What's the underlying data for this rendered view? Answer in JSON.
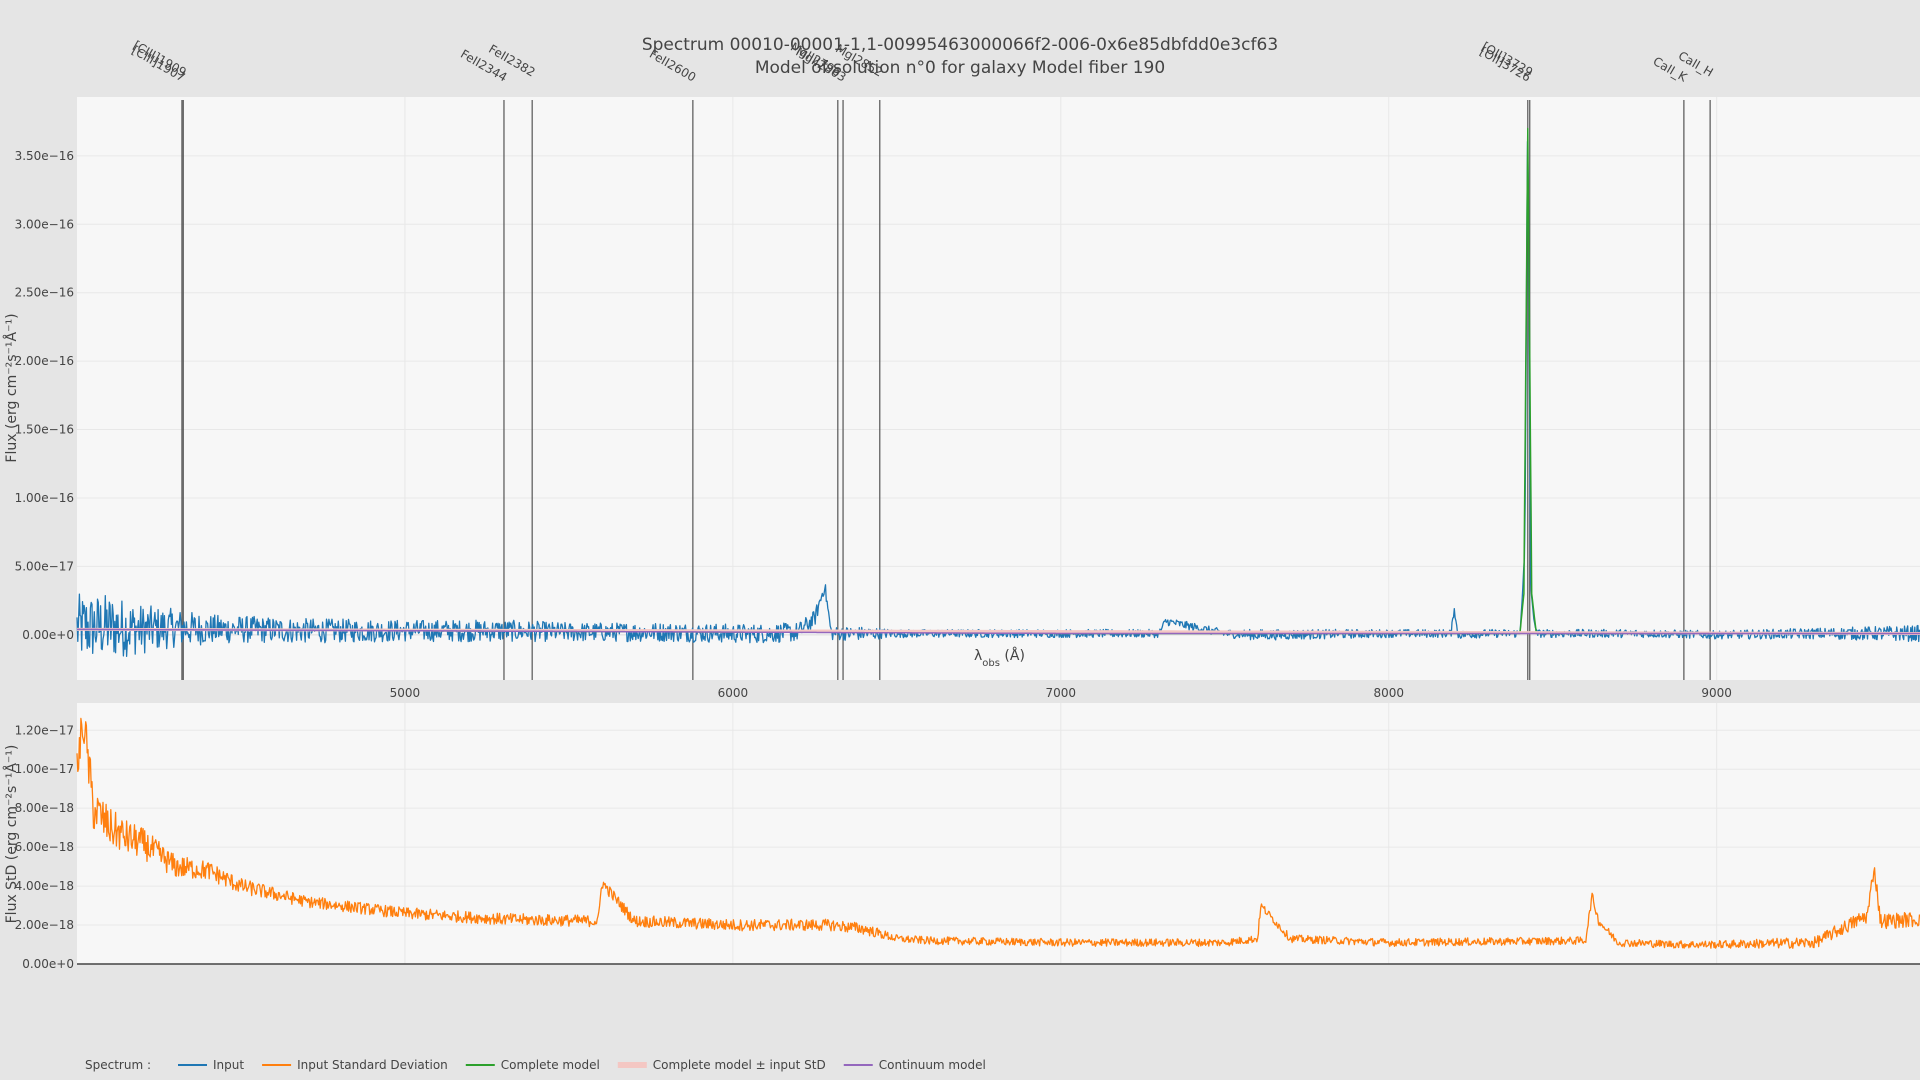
{
  "chart_data": [
    {
      "type": "line",
      "title": "Spectrum 00010-00001-1,1-00995463000066f2-006-0x6e85dbfdd0e3cf63",
      "subtitle": "Model of solution n°0 for galaxy Model fiber 190",
      "xlabel": "λ_obs (Å)",
      "xlabel_main": "λ",
      "xlabel_sub": "obs",
      "xlabel_tail": " (Å)",
      "ylabel": "Flux (erg cm⁻²s⁻¹Å⁻¹)",
      "xlim": [
        4000,
        9620
      ],
      "ylim": [
        -3.3e-17,
        3.93e-16
      ],
      "xticks": [
        5000,
        6000,
        7000,
        8000,
        9000
      ],
      "xticklabels": [
        "5000",
        "6000",
        "7000",
        "8000",
        "9000"
      ],
      "yticks": [
        0,
        5e-17,
        1e-16,
        1.5e-16,
        2e-16,
        2.5e-16,
        3e-16,
        3.5e-16
      ],
      "yticklabels": [
        "0.00e+0",
        "5.00e−17",
        "1.00e−16",
        "1.50e−16",
        "2.00e−16",
        "2.50e−16",
        "3.00e−16",
        "3.50e−16"
      ],
      "grid": true,
      "emission_lines": [
        {
          "name": "[CIII]1907",
          "x": 4320
        },
        {
          "name": "[CIII]1909",
          "x": 4324
        },
        {
          "name": "FeII2344",
          "x": 5302
        },
        {
          "name": "FeII2382",
          "x": 5388
        },
        {
          "name": "FeII2600",
          "x": 5878
        },
        {
          "name": "MgII2796",
          "x": 6320
        },
        {
          "name": "MgII2803",
          "x": 6336
        },
        {
          "name": "MgI2852",
          "x": 6448
        },
        {
          "name": "[OII]3726",
          "x": 8424
        },
        {
          "name": "[OII]3729",
          "x": 8430
        },
        {
          "name": "CaII_K",
          "x": 8900
        },
        {
          "name": "CaII_H",
          "x": 8980
        }
      ],
      "series": [
        {
          "name": "Input",
          "color": "#1f77b4",
          "x": [
            4000,
            4100,
            4200,
            4300,
            4400,
            4500,
            4700,
            5000,
            5300,
            5500,
            5800,
            6000,
            6100,
            6200,
            6250,
            6280,
            6300,
            6350,
            6400,
            6500,
            6700,
            7000,
            7300,
            7320,
            7500,
            7600,
            8000,
            8190,
            8200,
            8210,
            8300,
            8400,
            8415,
            8424,
            8433,
            8450,
            8600,
            8800,
            9000,
            9300,
            9620
          ],
          "y": [
            5e-18,
            6e-18,
            4e-18,
            5e-18,
            4e-18,
            4e-18,
            3e-18,
            3e-18,
            3e-18,
            2e-18,
            2e-18,
            1e-18,
            1e-18,
            2e-18,
            1.2e-17,
            3.6e-17,
            1e-18,
            1e-18,
            1e-18,
            1e-18,
            1e-18,
            1e-18,
            1e-18,
            1e-17,
            1e-18,
            0,
            1e-18,
            1e-18,
            2e-17,
            0,
            1e-18,
            1e-18,
            6e-17,
            3.9e-16,
            3e-17,
            1e-18,
            1e-18,
            1e-18,
            0,
            1e-18,
            1e-18
          ],
          "noise_amp": [
            2.5e-17,
            2.4e-17,
            1.8e-17,
            1.4e-17,
            1.1e-17,
            1e-17,
            9e-18,
            8e-18,
            8e-18,
            7e-18,
            7e-18,
            7e-18,
            7e-18,
            7e-18,
            6e-18,
            5e-18,
            5e-18,
            5e-18,
            5e-18,
            3e-18,
            3e-18,
            3e-18,
            3e-18,
            3e-18,
            3e-18,
            4e-18,
            3e-18,
            3e-18,
            3e-18,
            3e-18,
            3e-18,
            3e-18,
            3e-18,
            3e-18,
            3e-18,
            3e-18,
            3e-18,
            3e-18,
            3e-18,
            4e-18,
            6e-18
          ]
        },
        {
          "name": "Complete model",
          "color": "#2ca02c",
          "x": [
            4000,
            5000,
            6000,
            6250,
            6280,
            6310,
            7000,
            8000,
            8400,
            8412,
            8424,
            8436,
            8450,
            9000,
            9620
          ],
          "y": [
            4e-18,
            3e-18,
            2e-18,
            2e-18,
            3e-18,
            2e-18,
            1e-18,
            1e-18,
            1e-18,
            3e-17,
            3.7e-16,
            3e-17,
            1e-18,
            1e-18,
            1e-18
          ]
        },
        {
          "name": "Complete model ± input StD",
          "color": "#f4c7c3",
          "x": [
            4000,
            9620
          ],
          "y": [
            4e-18,
            1e-18
          ]
        },
        {
          "name": "Continuum model",
          "color": "#9467bd",
          "x": [
            4000,
            5000,
            6000,
            7000,
            8000,
            9000,
            9620
          ],
          "y": [
            4e-18,
            3e-18,
            2e-18,
            1e-18,
            1e-18,
            1e-18,
            1e-18
          ]
        }
      ]
    },
    {
      "type": "line",
      "ylabel": "Flux StD (erg cm⁻²s⁻¹Å⁻¹)",
      "xlim": [
        4000,
        9620
      ],
      "ylim": [
        0,
        1.34e-17
      ],
      "xticks": [
        5000,
        6000,
        7000,
        8000,
        9000
      ],
      "yticks": [
        0,
        2e-18,
        4e-18,
        6e-18,
        8e-18,
        1e-17,
        1.2e-17
      ],
      "yticklabels": [
        "0.00e+0",
        "2.00e−18",
        "4.00e−18",
        "6.00e−18",
        "8.00e−18",
        "1.00e−17",
        "1.20e−17"
      ],
      "grid": true,
      "series": [
        {
          "name": "Input Standard Deviation",
          "color": "#ff7f0e",
          "x": [
            4000,
            4020,
            4050,
            4100,
            4150,
            4200,
            4300,
            4400,
            4500,
            4700,
            5000,
            5300,
            5590,
            5600,
            5700,
            6000,
            6300,
            6400,
            6500,
            6600,
            7000,
            7500,
            7600,
            7610,
            7700,
            8000,
            8600,
            8620,
            8640,
            8700,
            8900,
            9000,
            9300,
            9460,
            9480,
            9500,
            9620
          ],
          "y": [
            1e-17,
            1.25e-17,
            8e-18,
            7e-18,
            6.5e-18,
            6.2e-18,
            5e-18,
            4.8e-18,
            4e-18,
            3.2e-18,
            2.6e-18,
            2.3e-18,
            2.2e-18,
            4.2e-18,
            2.2e-18,
            2e-18,
            2e-18,
            1.8e-18,
            1.3e-18,
            1.2e-18,
            1.1e-18,
            1.1e-18,
            1.3e-18,
            3e-18,
            1.3e-18,
            1.1e-18,
            1.2e-18,
            3.5e-18,
            2.2e-18,
            1.1e-18,
            1e-18,
            1e-18,
            1.1e-18,
            2.5e-18,
            5e-18,
            2.2e-18,
            2.3e-18
          ],
          "noise_amp": [
            1.2e-18,
            1.2e-18,
            1.2e-18,
            1e-18,
            9e-19,
            8e-19,
            6e-19,
            5e-19,
            4e-19,
            3e-19,
            3e-19,
            3e-19,
            3e-19,
            3e-19,
            3e-19,
            3e-19,
            3e-19,
            3e-19,
            2e-19,
            2e-19,
            2e-19,
            2e-19,
            2e-19,
            2e-19,
            2e-19,
            2e-19,
            2e-19,
            2e-19,
            2e-19,
            2e-19,
            2e-19,
            2e-19,
            3e-19,
            4e-19,
            4e-19,
            4e-19,
            4e-19
          ]
        }
      ]
    }
  ],
  "legend": {
    "title": "Spectrum :",
    "placement": "bottom-left",
    "items": [
      {
        "label": "Input",
        "color": "#1f77b4"
      },
      {
        "label": "Input Standard Deviation",
        "color": "#ff7f0e"
      },
      {
        "label": "Complete model",
        "color": "#2ca02c"
      },
      {
        "label": "Complete model ± input StD",
        "color": "#f4c7c3"
      },
      {
        "label": "Continuum model",
        "color": "#9467bd"
      }
    ]
  }
}
